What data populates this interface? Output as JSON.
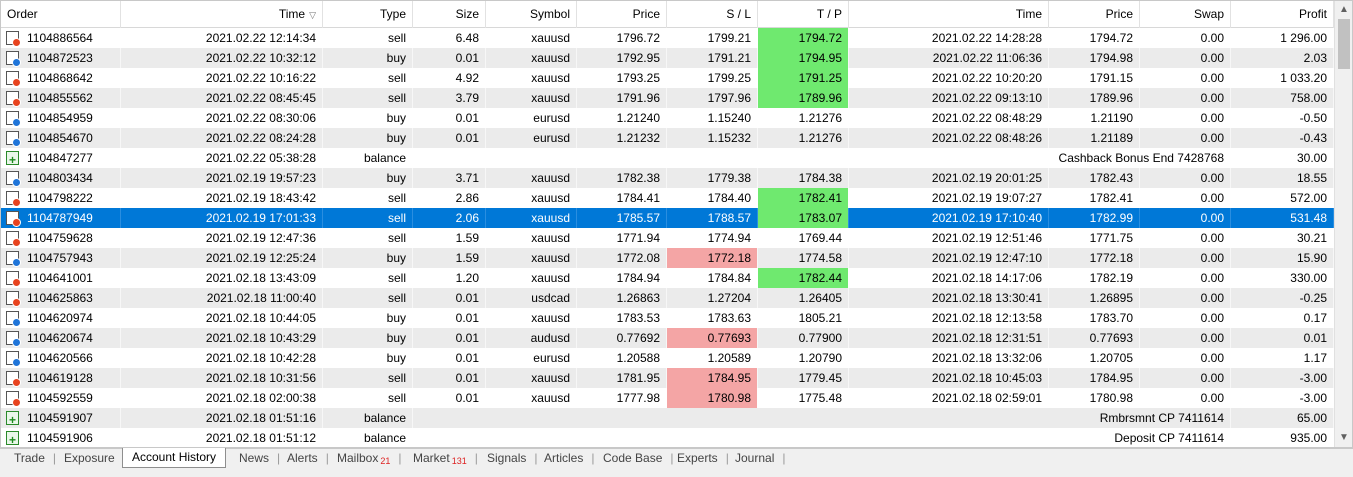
{
  "columns": [
    {
      "label": "Order"
    },
    {
      "label": "Time"
    },
    {
      "label": "Type"
    },
    {
      "label": "Size"
    },
    {
      "label": "Symbol"
    },
    {
      "label": "Price"
    },
    {
      "label": "S / L"
    },
    {
      "label": "T / P"
    },
    {
      "label": "Time"
    },
    {
      "label": "Price"
    },
    {
      "label": "Swap"
    },
    {
      "label": "Profit"
    }
  ],
  "sort_indicator": "▽",
  "rows": [
    {
      "order": "1104886564",
      "time": "2021.02.22 12:14:34",
      "type": "sell",
      "size": "6.48",
      "symbol": "xauusd",
      "price": "1796.72",
      "sl": "1799.21",
      "tp": "1794.72",
      "close_time": "2021.02.22 14:28:28",
      "close_price": "1794.72",
      "swap": "0.00",
      "profit": "1 296.00",
      "tp_hl": "green"
    },
    {
      "order": "1104872523",
      "time": "2021.02.22 10:32:12",
      "type": "buy",
      "size": "0.01",
      "symbol": "xauusd",
      "price": "1792.95",
      "sl": "1791.21",
      "tp": "1794.95",
      "close_time": "2021.02.22 11:06:36",
      "close_price": "1794.98",
      "swap": "0.00",
      "profit": "2.03",
      "tp_hl": "green"
    },
    {
      "order": "1104868642",
      "time": "2021.02.22 10:16:22",
      "type": "sell",
      "size": "4.92",
      "symbol": "xauusd",
      "price": "1793.25",
      "sl": "1799.25",
      "tp": "1791.25",
      "close_time": "2021.02.22 10:20:20",
      "close_price": "1791.15",
      "swap": "0.00",
      "profit": "1 033.20",
      "tp_hl": "green"
    },
    {
      "order": "1104855562",
      "time": "2021.02.22 08:45:45",
      "type": "sell",
      "size": "3.79",
      "symbol": "xauusd",
      "price": "1791.96",
      "sl": "1797.96",
      "tp": "1789.96",
      "close_time": "2021.02.22 09:13:10",
      "close_price": "1789.96",
      "swap": "0.00",
      "profit": "758.00",
      "tp_hl": "green"
    },
    {
      "order": "1104854959",
      "time": "2021.02.22 08:30:06",
      "type": "buy",
      "size": "0.01",
      "symbol": "eurusd",
      "price": "1.21240",
      "sl": "1.15240",
      "tp": "1.21276",
      "close_time": "2021.02.22 08:48:29",
      "close_price": "1.21190",
      "swap": "0.00",
      "profit": "-0.50"
    },
    {
      "order": "1104854670",
      "time": "2021.02.22 08:24:28",
      "type": "buy",
      "size": "0.01",
      "symbol": "eurusd",
      "price": "1.21232",
      "sl": "1.15232",
      "tp": "1.21276",
      "close_time": "2021.02.22 08:48:26",
      "close_price": "1.21189",
      "swap": "0.00",
      "profit": "-0.43"
    },
    {
      "order": "1104847277",
      "time": "2021.02.22 05:38:28",
      "type": "balance",
      "comment": "Cashback Bonus End 7428768",
      "profit": "30.00"
    },
    {
      "order": "1104803434",
      "time": "2021.02.19 19:57:23",
      "type": "buy",
      "size": "3.71",
      "symbol": "xauusd",
      "price": "1782.38",
      "sl": "1779.38",
      "tp": "1784.38",
      "close_time": "2021.02.19 20:01:25",
      "close_price": "1782.43",
      "swap": "0.00",
      "profit": "18.55"
    },
    {
      "order": "1104798222",
      "time": "2021.02.19 18:43:42",
      "type": "sell",
      "size": "2.86",
      "symbol": "xauusd",
      "price": "1784.41",
      "sl": "1784.40",
      "tp": "1782.41",
      "close_time": "2021.02.19 19:07:27",
      "close_price": "1782.41",
      "swap": "0.00",
      "profit": "572.00",
      "tp_hl": "green"
    },
    {
      "order": "1104787949",
      "time": "2021.02.19 17:01:33",
      "type": "sell",
      "size": "2.06",
      "symbol": "xauusd",
      "price": "1785.57",
      "sl": "1788.57",
      "tp": "1783.07",
      "close_time": "2021.02.19 17:10:40",
      "close_price": "1782.99",
      "swap": "0.00",
      "profit": "531.48",
      "tp_hl": "green",
      "selected": true
    },
    {
      "order": "1104759628",
      "time": "2021.02.19 12:47:36",
      "type": "sell",
      "size": "1.59",
      "symbol": "xauusd",
      "price": "1771.94",
      "sl": "1774.94",
      "tp": "1769.44",
      "close_time": "2021.02.19 12:51:46",
      "close_price": "1771.75",
      "swap": "0.00",
      "profit": "30.21"
    },
    {
      "order": "1104757943",
      "time": "2021.02.19 12:25:24",
      "type": "buy",
      "size": "1.59",
      "symbol": "xauusd",
      "price": "1772.08",
      "sl": "1772.18",
      "tp": "1774.58",
      "close_time": "2021.02.19 12:47:10",
      "close_price": "1772.18",
      "swap": "0.00",
      "profit": "15.90",
      "sl_hl": "red"
    },
    {
      "order": "1104641001",
      "time": "2021.02.18 13:43:09",
      "type": "sell",
      "size": "1.20",
      "symbol": "xauusd",
      "price": "1784.94",
      "sl": "1784.84",
      "tp": "1782.44",
      "close_time": "2021.02.18 14:17:06",
      "close_price": "1782.19",
      "swap": "0.00",
      "profit": "330.00",
      "tp_hl": "green"
    },
    {
      "order": "1104625863",
      "time": "2021.02.18 11:00:40",
      "type": "sell",
      "size": "0.01",
      "symbol": "usdcad",
      "price": "1.26863",
      "sl": "1.27204",
      "tp": "1.26405",
      "close_time": "2021.02.18 13:30:41",
      "close_price": "1.26895",
      "swap": "0.00",
      "profit": "-0.25"
    },
    {
      "order": "1104620974",
      "time": "2021.02.18 10:44:05",
      "type": "buy",
      "size": "0.01",
      "symbol": "xauusd",
      "price": "1783.53",
      "sl": "1783.63",
      "tp": "1805.21",
      "close_time": "2021.02.18 12:13:58",
      "close_price": "1783.70",
      "swap": "0.00",
      "profit": "0.17"
    },
    {
      "order": "1104620674",
      "time": "2021.02.18 10:43:29",
      "type": "buy",
      "size": "0.01",
      "symbol": "audusd",
      "price": "0.77692",
      "sl": "0.77693",
      "tp": "0.77900",
      "close_time": "2021.02.18 12:31:51",
      "close_price": "0.77693",
      "swap": "0.00",
      "profit": "0.01",
      "sl_hl": "red"
    },
    {
      "order": "1104620566",
      "time": "2021.02.18 10:42:28",
      "type": "buy",
      "size": "0.01",
      "symbol": "eurusd",
      "price": "1.20588",
      "sl": "1.20589",
      "tp": "1.20790",
      "close_time": "2021.02.18 13:32:06",
      "close_price": "1.20705",
      "swap": "0.00",
      "profit": "1.17"
    },
    {
      "order": "1104619128",
      "time": "2021.02.18 10:31:56",
      "type": "sell",
      "size": "0.01",
      "symbol": "xauusd",
      "price": "1781.95",
      "sl": "1784.95",
      "tp": "1779.45",
      "close_time": "2021.02.18 10:45:03",
      "close_price": "1784.95",
      "swap": "0.00",
      "profit": "-3.00",
      "sl_hl": "red"
    },
    {
      "order": "1104592559",
      "time": "2021.02.18 02:00:38",
      "type": "sell",
      "size": "0.01",
      "symbol": "xauusd",
      "price": "1777.98",
      "sl": "1780.98",
      "tp": "1775.48",
      "close_time": "2021.02.18 02:59:01",
      "close_price": "1780.98",
      "swap": "0.00",
      "profit": "-3.00",
      "sl_hl": "red"
    },
    {
      "order": "1104591907",
      "time": "2021.02.18 01:51:16",
      "type": "balance",
      "comment": "Rmbrsmnt CP 7411614",
      "profit": "65.00"
    },
    {
      "order": "1104591906",
      "time": "2021.02.18 01:51:12",
      "type": "balance",
      "comment": "Deposit CP 7411614",
      "profit": "935.00"
    }
  ],
  "tabs": [
    {
      "label": "Trade"
    },
    {
      "label": "Exposure"
    },
    {
      "label": "Account History",
      "active": true
    },
    {
      "label": "News"
    },
    {
      "label": "Alerts"
    },
    {
      "label": "Mailbox",
      "badge": "21"
    },
    {
      "label": "Market",
      "badge": "131"
    },
    {
      "label": "Signals"
    },
    {
      "label": "Articles"
    },
    {
      "label": "Code Base"
    },
    {
      "label": "Experts"
    },
    {
      "label": "Journal"
    }
  ],
  "scrollbar": {
    "up_arrow": "▲",
    "down_arrow": "▼"
  },
  "colors": {
    "selection": "#0078d7",
    "tp_hit": "#6fe96f",
    "sl_hit": "#f4a5a5",
    "sell_dot": "#e8431f",
    "buy_dot": "#1e74d9"
  }
}
